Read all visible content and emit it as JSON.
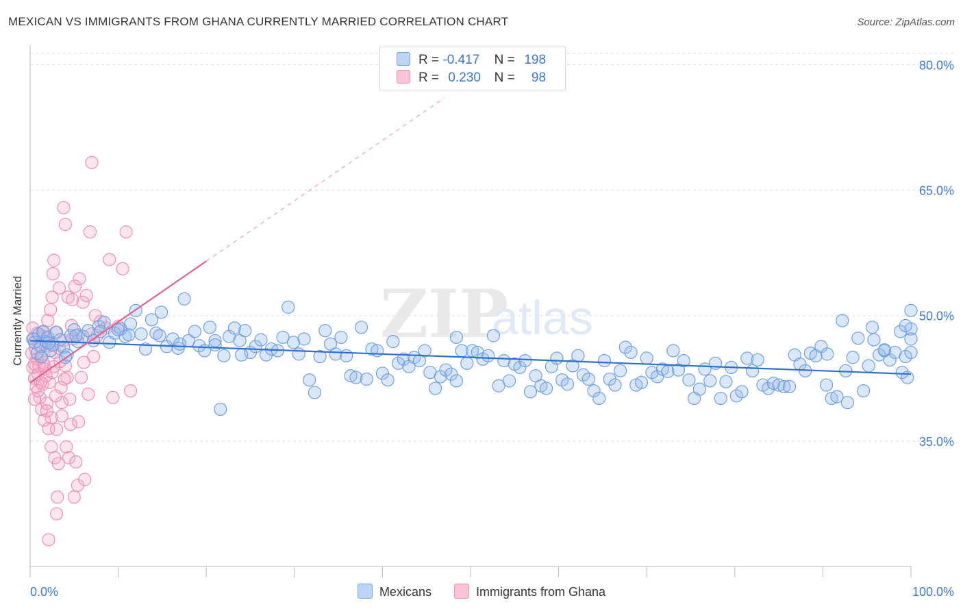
{
  "title": "MEXICAN VS IMMIGRANTS FROM GHANA CURRENTLY MARRIED CORRELATION CHART",
  "source": "Source: ZipAtlas.com",
  "watermark": {
    "zip": "ZIP",
    "atlas": "atlas"
  },
  "legend": {
    "r_label": "R =",
    "n_label": "N =",
    "rows": [
      {
        "r": "-0.417",
        "n": "198",
        "color": "#6fa3e6",
        "fill": "#bdd4f5"
      },
      {
        "r": "0.230",
        "n": "98",
        "color": "#ee8fb1",
        "fill": "#f8c4d6"
      }
    ]
  },
  "bottom_legend": [
    "Mexicans",
    "Immigrants from Ghana"
  ],
  "colors": {
    "blue_stroke": "#6f9fe0",
    "blue_fill": "rgba(150,185,235,0.35)",
    "blue_line": "#2f6fd0",
    "pink_stroke": "#ee8fb1",
    "pink_fill": "rgba(245,170,200,0.30)",
    "pink_line": "#e06090",
    "axis_label": "#3b78c8",
    "grid": "#dddddd"
  },
  "chart_data": {
    "type": "scatter",
    "title": "MEXICAN VS IMMIGRANTS FROM GHANA CURRENTLY MARRIED CORRELATION CHART",
    "xlabel": "",
    "ylabel": "Currently Married",
    "xlim": [
      0,
      100
    ],
    "ylim": [
      20,
      82
    ],
    "x_tick_labels": [
      "0.0%",
      "100.0%"
    ],
    "y_ticks": [
      35,
      50,
      65,
      80
    ],
    "y_tick_labels": [
      "35.0%",
      "50.0%",
      "65.0%",
      "80.0%"
    ],
    "series": [
      {
        "name": "Mexicans",
        "r": -0.417,
        "n": 198,
        "trend": {
          "x": [
            0,
            100
          ],
          "y": [
            47.0,
            43.0
          ]
        },
        "points": [
          [
            0.3,
            47.2
          ],
          [
            0.5,
            46.8
          ],
          [
            0.8,
            45.5
          ],
          [
            1.0,
            47.8
          ],
          [
            1.2,
            46.3
          ],
          [
            1.5,
            48.1
          ],
          [
            1.8,
            46.9
          ],
          [
            2.0,
            47.4
          ],
          [
            2.3,
            45.8
          ],
          [
            2.6,
            46.5
          ],
          [
            3.0,
            48.0
          ],
          [
            3.4,
            47.1
          ],
          [
            3.8,
            46.2
          ],
          [
            4.2,
            45.3
          ],
          [
            4.6,
            47.6
          ],
          [
            5.0,
            48.3
          ],
          [
            5.4,
            46.9
          ],
          [
            6.0,
            47.5
          ],
          [
            6.6,
            48.2
          ],
          [
            7.2,
            47.0
          ],
          [
            7.8,
            48.7
          ],
          [
            8.4,
            49.2
          ],
          [
            9.0,
            46.8
          ],
          [
            9.6,
            47.9
          ],
          [
            10.3,
            48.4
          ],
          [
            10.8,
            47.5
          ],
          [
            11.4,
            49.0
          ],
          [
            12.0,
            50.6
          ],
          [
            12.6,
            47.8
          ],
          [
            13.1,
            46.0
          ],
          [
            13.8,
            49.5
          ],
          [
            14.3,
            47.9
          ],
          [
            14.9,
            50.4
          ],
          [
            15.5,
            46.3
          ],
          [
            16.2,
            47.2
          ],
          [
            16.8,
            46.1
          ],
          [
            17.5,
            52.0
          ],
          [
            18.0,
            47.0
          ],
          [
            18.7,
            48.1
          ],
          [
            19.2,
            46.4
          ],
          [
            19.8,
            45.8
          ],
          [
            20.4,
            48.6
          ],
          [
            21.0,
            47.0
          ],
          [
            21.6,
            38.8
          ],
          [
            22.0,
            45.2
          ],
          [
            22.6,
            47.5
          ],
          [
            23.2,
            48.5
          ],
          [
            23.8,
            47.0
          ],
          [
            24.4,
            48.2
          ],
          [
            25.0,
            45.6
          ],
          [
            25.6,
            46.3
          ],
          [
            26.2,
            47.1
          ],
          [
            26.8,
            45.3
          ],
          [
            27.4,
            46.0
          ],
          [
            28.1,
            45.8
          ],
          [
            28.7,
            47.4
          ],
          [
            29.3,
            51.0
          ],
          [
            29.9,
            46.8
          ],
          [
            30.5,
            45.4
          ],
          [
            31.1,
            47.2
          ],
          [
            31.7,
            42.3
          ],
          [
            32.3,
            40.8
          ],
          [
            32.9,
            45.1
          ],
          [
            33.5,
            48.2
          ],
          [
            34.1,
            46.6
          ],
          [
            34.7,
            45.4
          ],
          [
            35.3,
            47.4
          ],
          [
            35.9,
            45.2
          ],
          [
            36.4,
            42.8
          ],
          [
            37.0,
            42.6
          ],
          [
            37.6,
            48.6
          ],
          [
            38.2,
            42.4
          ],
          [
            38.8,
            46.0
          ],
          [
            39.4,
            45.8
          ],
          [
            40.0,
            43.1
          ],
          [
            40.6,
            42.3
          ],
          [
            41.2,
            46.9
          ],
          [
            41.8,
            44.3
          ],
          [
            42.4,
            44.8
          ],
          [
            43.0,
            43.9
          ],
          [
            43.6,
            45.0
          ],
          [
            44.2,
            44.6
          ],
          [
            44.8,
            45.8
          ],
          [
            45.4,
            43.2
          ],
          [
            46.0,
            41.3
          ],
          [
            46.6,
            42.7
          ],
          [
            47.2,
            43.5
          ],
          [
            47.8,
            43.0
          ],
          [
            48.4,
            42.2
          ],
          [
            49.0,
            45.8
          ],
          [
            49.6,
            44.3
          ],
          [
            50.2,
            45.8
          ],
          [
            50.8,
            45.6
          ],
          [
            51.4,
            44.8
          ],
          [
            52.0,
            45.2
          ],
          [
            52.6,
            47.6
          ],
          [
            53.2,
            41.6
          ],
          [
            53.8,
            44.6
          ],
          [
            54.4,
            42.2
          ],
          [
            55.0,
            44.2
          ],
          [
            55.6,
            43.8
          ],
          [
            56.2,
            44.6
          ],
          [
            56.8,
            40.9
          ],
          [
            57.4,
            42.8
          ],
          [
            58.0,
            41.6
          ],
          [
            58.6,
            41.3
          ],
          [
            59.2,
            43.9
          ],
          [
            59.8,
            44.9
          ],
          [
            60.4,
            42.3
          ],
          [
            61.0,
            41.8
          ],
          [
            61.6,
            44.0
          ],
          [
            62.2,
            45.2
          ],
          [
            62.8,
            42.9
          ],
          [
            63.4,
            42.4
          ],
          [
            64.0,
            41.0
          ],
          [
            64.6,
            40.1
          ],
          [
            65.2,
            44.6
          ],
          [
            65.8,
            42.4
          ],
          [
            66.4,
            41.7
          ],
          [
            67.0,
            43.4
          ],
          [
            67.6,
            46.2
          ],
          [
            68.2,
            45.6
          ],
          [
            68.8,
            41.7
          ],
          [
            69.4,
            42.0
          ],
          [
            70.0,
            44.9
          ],
          [
            70.6,
            43.2
          ],
          [
            71.2,
            42.7
          ],
          [
            71.8,
            43.6
          ],
          [
            72.4,
            43.3
          ],
          [
            73.0,
            45.8
          ],
          [
            73.6,
            43.5
          ],
          [
            74.2,
            44.6
          ],
          [
            74.8,
            42.3
          ],
          [
            75.4,
            40.1
          ],
          [
            76.0,
            41.2
          ],
          [
            76.6,
            43.6
          ],
          [
            77.2,
            42.2
          ],
          [
            77.8,
            44.3
          ],
          [
            78.4,
            40.1
          ],
          [
            79.0,
            42.1
          ],
          [
            79.6,
            43.8
          ],
          [
            80.2,
            40.4
          ],
          [
            80.8,
            40.9
          ],
          [
            81.4,
            44.9
          ],
          [
            82.0,
            43.4
          ],
          [
            82.6,
            44.7
          ],
          [
            83.2,
            41.7
          ],
          [
            83.8,
            41.3
          ],
          [
            84.4,
            41.9
          ],
          [
            85.0,
            41.7
          ],
          [
            85.6,
            41.5
          ],
          [
            86.2,
            41.5
          ],
          [
            86.8,
            45.3
          ],
          [
            87.4,
            44.2
          ],
          [
            88.0,
            43.4
          ],
          [
            88.6,
            45.5
          ],
          [
            89.2,
            45.2
          ],
          [
            89.8,
            46.3
          ],
          [
            90.4,
            41.7
          ],
          [
            91.0,
            40.1
          ],
          [
            91.6,
            40.3
          ],
          [
            92.2,
            49.4
          ],
          [
            92.8,
            39.6
          ],
          [
            93.4,
            45.0
          ],
          [
            94.0,
            47.3
          ],
          [
            94.6,
            41.0
          ],
          [
            95.2,
            44.0
          ],
          [
            95.8,
            47.1
          ],
          [
            96.4,
            45.3
          ],
          [
            97.0,
            45.8
          ],
          [
            97.6,
            44.7
          ],
          [
            98.2,
            45.6
          ],
          [
            98.8,
            48.1
          ],
          [
            99.4,
            45.1
          ],
          [
            100.0,
            48.4
          ],
          [
            48.4,
            47.4
          ],
          [
            90.5,
            45.4
          ],
          [
            92.6,
            43.4
          ],
          [
            95.6,
            48.6
          ],
          [
            97.0,
            45.9
          ],
          [
            99.0,
            43.2
          ],
          [
            99.4,
            48.8
          ],
          [
            99.6,
            42.6
          ],
          [
            100.0,
            47.2
          ],
          [
            100.0,
            45.6
          ],
          [
            100.0,
            50.6
          ],
          [
            1.3,
            45.1
          ],
          [
            2.1,
            46.7
          ],
          [
            4.0,
            45.0
          ],
          [
            5.2,
            47.6
          ],
          [
            8.0,
            48.1
          ],
          [
            10.0,
            48.3
          ],
          [
            11.2,
            47.7
          ],
          [
            14.7,
            47.6
          ],
          [
            17.0,
            46.6
          ],
          [
            21.0,
            46.5
          ],
          [
            24.0,
            45.3
          ]
        ]
      },
      {
        "name": "Immigrants from Ghana",
        "r": 0.23,
        "n": 98,
        "trend": {
          "x": [
            0,
            20
          ],
          "y": [
            42.0,
            56.5
          ],
          "extended_to": {
            "x": 47,
            "y": 76.0
          }
        },
        "points": [
          [
            0.2,
            45.5
          ],
          [
            0.3,
            43.8
          ],
          [
            0.4,
            47.2
          ],
          [
            0.5,
            44.2
          ],
          [
            0.5,
            42.5
          ],
          [
            0.6,
            46.1
          ],
          [
            0.7,
            41.5
          ],
          [
            0.8,
            44.8
          ],
          [
            0.9,
            43.0
          ],
          [
            1.0,
            46.5
          ],
          [
            1.1,
            40.2
          ],
          [
            1.2,
            45.0
          ],
          [
            1.3,
            38.8
          ],
          [
            1.4,
            41.8
          ],
          [
            1.5,
            44.4
          ],
          [
            1.6,
            37.5
          ],
          [
            1.7,
            43.6
          ],
          [
            1.8,
            46.8
          ],
          [
            1.9,
            39.5
          ],
          [
            2.0,
            49.4
          ],
          [
            2.1,
            36.5
          ],
          [
            2.2,
            42.0
          ],
          [
            2.3,
            50.7
          ],
          [
            2.4,
            34.3
          ],
          [
            2.5,
            52.2
          ],
          [
            2.6,
            55.0
          ],
          [
            2.7,
            56.6
          ],
          [
            2.8,
            33.0
          ],
          [
            2.9,
            48.0
          ],
          [
            3.0,
            26.3
          ],
          [
            3.1,
            28.3
          ],
          [
            3.2,
            32.3
          ],
          [
            3.3,
            53.3
          ],
          [
            3.4,
            44.5
          ],
          [
            3.5,
            41.4
          ],
          [
            3.6,
            38.0
          ],
          [
            3.8,
            62.9
          ],
          [
            4.0,
            60.9
          ],
          [
            4.1,
            34.3
          ],
          [
            4.2,
            42.6
          ],
          [
            4.3,
            52.2
          ],
          [
            4.4,
            33.0
          ],
          [
            4.5,
            40.0
          ],
          [
            4.6,
            37.0
          ],
          [
            4.7,
            48.8
          ],
          [
            4.8,
            51.9
          ],
          [
            5.0,
            28.3
          ],
          [
            5.1,
            53.5
          ],
          [
            5.2,
            32.5
          ],
          [
            5.4,
            29.7
          ],
          [
            5.5,
            37.3
          ],
          [
            5.6,
            54.4
          ],
          [
            5.8,
            42.6
          ],
          [
            6.0,
            51.6
          ],
          [
            6.1,
            44.4
          ],
          [
            6.2,
            30.4
          ],
          [
            6.4,
            52.4
          ],
          [
            6.6,
            40.6
          ],
          [
            6.8,
            60.0
          ],
          [
            7.0,
            47.8
          ],
          [
            7.2,
            45.1
          ],
          [
            7.4,
            50.0
          ],
          [
            7.6,
            47.6
          ],
          [
            8.0,
            49.3
          ],
          [
            8.6,
            48.5
          ],
          [
            9.0,
            56.7
          ],
          [
            9.4,
            40.2
          ],
          [
            10.0,
            48.7
          ],
          [
            10.5,
            55.6
          ],
          [
            10.9,
            60.0
          ],
          [
            11.4,
            41.0
          ],
          [
            7.0,
            68.3
          ],
          [
            2.1,
            23.2
          ],
          [
            1.0,
            44.0
          ],
          [
            1.5,
            47.5
          ],
          [
            0.8,
            47.9
          ],
          [
            2.8,
            45.6
          ],
          [
            3.8,
            47.0
          ],
          [
            1.2,
            42.0
          ],
          [
            0.5,
            40.0
          ],
          [
            1.8,
            42.8
          ],
          [
            2.5,
            43.2
          ],
          [
            3.6,
            39.6
          ],
          [
            4.8,
            47.2
          ],
          [
            5.5,
            47.7
          ],
          [
            2.4,
            37.8
          ],
          [
            3.0,
            36.4
          ],
          [
            1.4,
            48.0
          ],
          [
            0.3,
            48.5
          ],
          [
            2.2,
            46.4
          ],
          [
            3.3,
            46.1
          ],
          [
            4.0,
            44.0
          ],
          [
            2.9,
            40.4
          ],
          [
            1.9,
            38.6
          ],
          [
            0.9,
            41.0
          ],
          [
            1.6,
            44.0
          ],
          [
            2.7,
            43.9
          ],
          [
            3.9,
            42.4
          ]
        ]
      }
    ]
  }
}
